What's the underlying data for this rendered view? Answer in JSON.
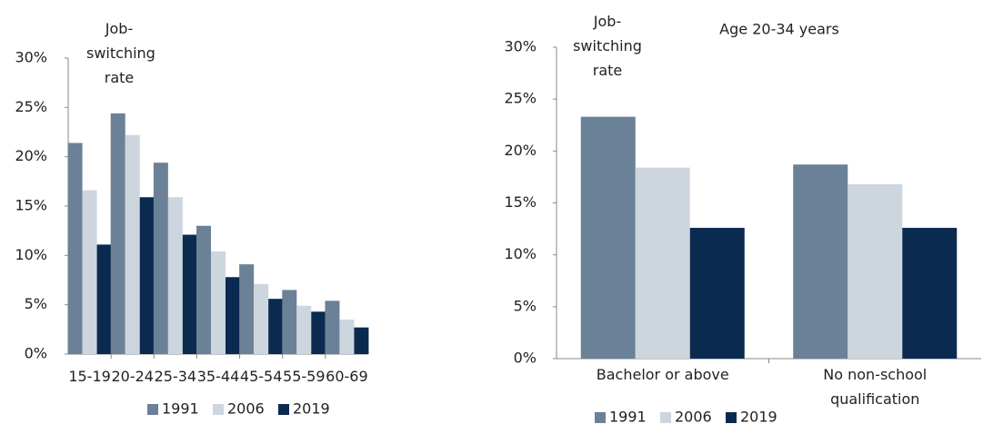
{
  "chart_data": [
    {
      "type": "bar",
      "ylabel": "Job-switching rate",
      "categories": [
        "15-19",
        "20-24",
        "25-34",
        "35-44",
        "45-54",
        "55-59",
        "60-69"
      ],
      "series": [
        {
          "name": "1991",
          "color": "#6a8198",
          "values": [
            21.4,
            24.4,
            19.4,
            13.0,
            9.1,
            6.5,
            5.4
          ]
        },
        {
          "name": "2006",
          "color": "#cdd5df",
          "values": [
            16.6,
            22.2,
            15.9,
            10.4,
            7.1,
            4.9,
            3.5
          ]
        },
        {
          "name": "2019",
          "color": "#0b2a50",
          "values": [
            11.1,
            15.9,
            12.1,
            7.8,
            5.6,
            4.3,
            2.7
          ]
        }
      ],
      "ylim": [
        0,
        30
      ],
      "yticks": [
        {
          "value": 0,
          "label": "0%"
        },
        {
          "value": 5,
          "label": "5%"
        },
        {
          "value": 10,
          "label": "10%"
        },
        {
          "value": 15,
          "label": "15%"
        },
        {
          "value": 20,
          "label": "20%"
        },
        {
          "value": 25,
          "label": "25%"
        },
        {
          "value": 30,
          "label": "30%"
        }
      ],
      "grid": false,
      "legend": "bottom"
    },
    {
      "type": "bar",
      "title": "Age 20-34 years",
      "ylabel": "Job-switching rate",
      "categories": [
        "Bachelor or above",
        "No non-school qualification"
      ],
      "series": [
        {
          "name": "1991",
          "color": "#6a8198",
          "values": [
            23.3,
            18.7
          ]
        },
        {
          "name": "2006",
          "color": "#cdd5df",
          "values": [
            18.4,
            16.8
          ]
        },
        {
          "name": "2019",
          "color": "#0b2a50",
          "values": [
            12.6,
            12.6
          ]
        }
      ],
      "ylim": [
        0,
        30
      ],
      "yticks": [
        {
          "value": 0,
          "label": "0%"
        },
        {
          "value": 5,
          "label": "5%"
        },
        {
          "value": 10,
          "label": "10%"
        },
        {
          "value": 15,
          "label": "15%"
        },
        {
          "value": 20,
          "label": "20%"
        },
        {
          "value": 25,
          "label": "25%"
        },
        {
          "value": 30,
          "label": "30%"
        }
      ],
      "grid": false,
      "legend": "bottom"
    }
  ]
}
